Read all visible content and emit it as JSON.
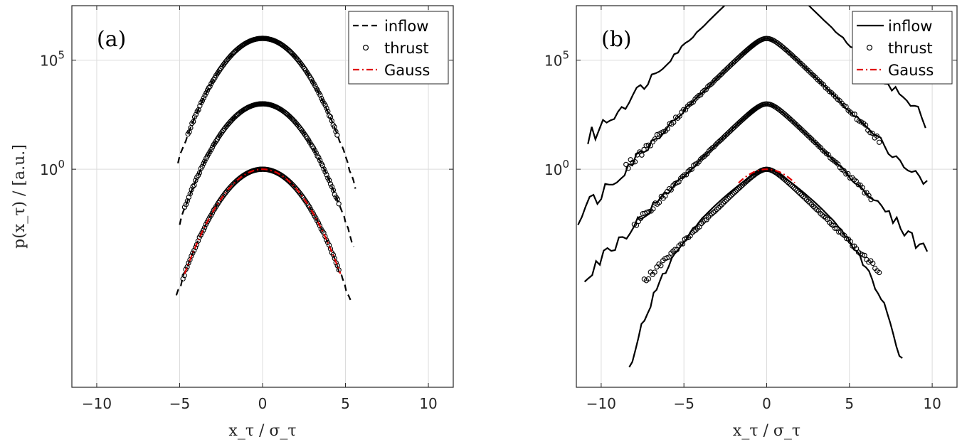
{
  "chart_data": [
    {
      "type": "line",
      "panel_label": "(a)",
      "xlabel": "x_τ / σ_τ",
      "ylabel": "p(x_τ) / [a.u.]",
      "xlim": [
        -11.5,
        11.5
      ],
      "y_scale": "log",
      "ylim_log10": [
        -10,
        7.5
      ],
      "xticks": [
        -10,
        -5,
        0,
        5,
        10
      ],
      "ytick_labels": [
        {
          "base": "10",
          "exp": "0",
          "log10": 0
        },
        {
          "base": "10",
          "exp": "5",
          "log10": 5
        }
      ],
      "grid": true,
      "legend": {
        "position": "top-right",
        "entries": [
          "inflow",
          "thrust",
          "Gauss"
        ]
      },
      "series": [
        {
          "name": "inflow",
          "style": "dashed",
          "color": "#000000",
          "curves": [
            {
              "offset_log10": 6,
              "shape": "gauss",
              "xmin": -5.1,
              "xmax": 5.6
            },
            {
              "offset_log10": 3,
              "shape": "gauss",
              "xmin": -5.0,
              "xmax": 5.5
            },
            {
              "offset_log10": 0,
              "shape": "gauss",
              "xmin": -5.2,
              "xmax": 5.3
            }
          ]
        },
        {
          "name": "thrust",
          "style": "circles",
          "color": "#000000",
          "curves": [
            {
              "offset_log10": 6,
              "shape": "gauss",
              "xmin": -4.5,
              "xmax": 4.5
            },
            {
              "offset_log10": 3,
              "shape": "gauss",
              "xmin": -4.7,
              "xmax": 4.6
            },
            {
              "offset_log10": 0,
              "shape": "gauss",
              "xmin": -4.8,
              "xmax": 4.6
            }
          ]
        },
        {
          "name": "Gauss",
          "style": "dashdot",
          "color": "#e00000",
          "curves": [
            {
              "offset_log10": 0,
              "shape": "gauss",
              "xmin": -4.7,
              "xmax": 4.7
            }
          ]
        }
      ]
    },
    {
      "type": "line",
      "panel_label": "(b)",
      "xlabel": "x_τ / σ_τ",
      "ylabel": "",
      "xlim": [
        -11.5,
        11.5
      ],
      "y_scale": "log",
      "ylim_log10": [
        -10,
        7.5
      ],
      "xticks": [
        -10,
        -5,
        0,
        5,
        10
      ],
      "ytick_labels": [
        {
          "base": "10",
          "exp": "0",
          "log10": 0
        },
        {
          "base": "10",
          "exp": "5",
          "log10": 5
        }
      ],
      "grid": true,
      "legend": {
        "position": "top-right",
        "entries": [
          "inflow",
          "thrust",
          "Gauss"
        ]
      },
      "series": [
        {
          "name": "inflow",
          "style": "solid",
          "color": "#000000",
          "curves": [
            {
              "offset_log10": 9,
              "shape": "heavy",
              "xmin": -10.8,
              "xmax": 9.6
            },
            {
              "offset_log10": 6,
              "shape": "heavy",
              "xmin": -11.4,
              "xmax": 9.7
            },
            {
              "offset_log10": 3,
              "shape": "heavy",
              "xmin": -11.0,
              "xmax": 9.7
            },
            {
              "offset_log10": 0,
              "shape": "tail",
              "xmin": -8.3,
              "xmax": 8.2
            }
          ]
        },
        {
          "name": "thrust",
          "style": "circles",
          "color": "#000000",
          "curves": [
            {
              "offset_log10": 6,
              "shape": "heavy",
              "xmin": -8.5,
              "xmax": 6.8
            },
            {
              "offset_log10": 3,
              "shape": "heavy",
              "xmin": -8.0,
              "xmax": 6.3
            },
            {
              "offset_log10": 0,
              "shape": "heavy",
              "xmin": -7.4,
              "xmax": 6.8
            }
          ]
        },
        {
          "name": "Gauss",
          "style": "dashdot",
          "color": "#e00000",
          "curves": [
            {
              "offset_log10": 0,
              "shape": "gauss",
              "xmin": -1.7,
              "xmax": 1.7
            }
          ]
        }
      ]
    }
  ]
}
